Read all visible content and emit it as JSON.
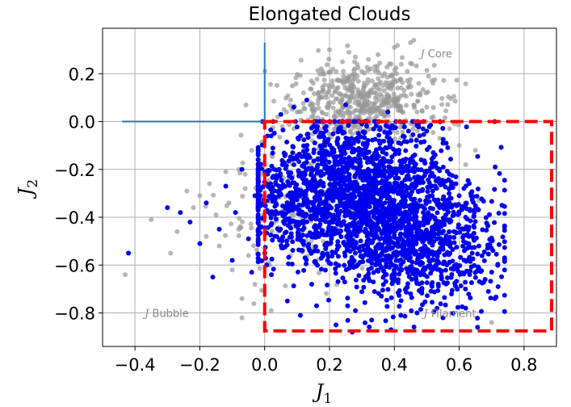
{
  "chart_data": {
    "type": "scatter",
    "title": "Elongated Clouds",
    "xlabel": {
      "symbol": "J",
      "sub": "1"
    },
    "ylabel": {
      "symbol": "J",
      "sub": "2"
    },
    "xlim": [
      -0.5,
      0.9
    ],
    "ylim": [
      -0.94,
      0.39
    ],
    "xticks": [
      -0.4,
      -0.2,
      0.0,
      0.2,
      0.4,
      0.6,
      0.8
    ],
    "xtick_labels": [
      "−0.4",
      "−0.2",
      "0.0",
      "0.2",
      "0.4",
      "0.6",
      "0.8"
    ],
    "yticks": [
      0.2,
      0.0,
      -0.2,
      -0.4,
      -0.6,
      -0.8
    ],
    "ytick_labels": [
      "0.2",
      "0.0",
      "−0.2",
      "−0.4",
      "−0.6",
      "−0.8"
    ],
    "grid": true,
    "colors": {
      "all_points": "#999999",
      "selected_points": "#0000ee",
      "box": "#ff0000",
      "axes_cross": "#1f77b4"
    },
    "cross_lines": {
      "horizontal": {
        "x": [
          -0.44,
          0.0
        ],
        "y": 0.0
      },
      "vertical": {
        "x": 0.0,
        "y": [
          0.0,
          0.33
        ]
      }
    },
    "selection_box": {
      "x": [
        0.0,
        0.885
      ],
      "y": [
        -0.875,
        0.0
      ],
      "style": "dashed"
    },
    "series": [
      {
        "role": "all",
        "color": "#999999",
        "points": [
          [
            -0.43,
            -0.64
          ],
          [
            -0.35,
            -0.41
          ],
          [
            -0.29,
            -0.55
          ],
          [
            -0.27,
            -0.46
          ],
          [
            -0.24,
            -0.29
          ],
          [
            -0.22,
            -0.36
          ],
          [
            -0.2,
            -0.31
          ],
          [
            -0.18,
            -0.48
          ],
          [
            -0.17,
            -0.26
          ],
          [
            -0.15,
            -0.39
          ],
          [
            -0.14,
            -0.52
          ],
          [
            -0.12,
            -0.21
          ],
          [
            -0.11,
            -0.34
          ],
          [
            -0.1,
            -0.62
          ],
          [
            -0.08,
            -0.45
          ],
          [
            -0.07,
            -0.74
          ],
          [
            -0.07,
            -0.82
          ],
          [
            -0.06,
            -0.28
          ],
          [
            -0.05,
            -0.56
          ],
          [
            -0.04,
            -0.12
          ],
          [
            -0.03,
            -0.68
          ],
          [
            -0.02,
            -0.4
          ],
          [
            -0.01,
            -0.22
          ],
          [
            0.02,
            -0.79
          ],
          [
            0.04,
            0.02
          ],
          [
            0.06,
            0.05
          ],
          [
            0.08,
            0.09
          ],
          [
            0.1,
            0.04
          ],
          [
            0.12,
            0.12
          ],
          [
            0.14,
            0.07
          ],
          [
            0.15,
            0.16
          ],
          [
            0.17,
            0.1
          ],
          [
            0.18,
            0.2
          ],
          [
            0.2,
            0.14
          ],
          [
            0.21,
            0.22
          ],
          [
            0.23,
            0.17
          ],
          [
            0.24,
            0.25
          ],
          [
            0.25,
            0.11
          ],
          [
            0.27,
            0.19
          ],
          [
            0.28,
            0.27
          ],
          [
            0.29,
            0.08
          ],
          [
            0.3,
            0.21
          ],
          [
            0.31,
            0.15
          ],
          [
            0.32,
            0.26
          ],
          [
            0.33,
            0.12
          ],
          [
            0.34,
            0.23
          ],
          [
            0.35,
            0.18
          ],
          [
            0.36,
            0.07
          ],
          [
            0.37,
            0.2
          ],
          [
            0.38,
            0.14
          ],
          [
            0.39,
            0.24
          ],
          [
            0.4,
            0.1
          ],
          [
            0.41,
            0.17
          ],
          [
            0.42,
            0.05
          ],
          [
            0.43,
            0.13
          ],
          [
            0.44,
            0.21
          ],
          [
            0.45,
            0.33
          ],
          [
            0.46,
            0.34
          ],
          [
            0.47,
            0.04
          ],
          [
            0.48,
            0.11
          ],
          [
            0.5,
            0.06
          ],
          [
            0.52,
            0.02
          ],
          [
            0.54,
            -0.07
          ],
          [
            0.57,
            -0.03
          ],
          [
            0.6,
            -0.1
          ],
          [
            0.62,
            -0.18
          ],
          [
            0.65,
            -0.12
          ],
          [
            0.66,
            -0.33
          ],
          [
            0.7,
            -0.84
          ],
          [
            0.2,
            0.3
          ],
          [
            0.26,
            0.29
          ],
          [
            0.35,
            0.28
          ],
          [
            0.4,
            0.31
          ],
          [
            0.15,
            0.02
          ],
          [
            0.09,
            -0.03
          ]
        ]
      },
      {
        "role": "selected",
        "color": "#0000ee",
        "points": [
          [
            -0.42,
            -0.55
          ],
          [
            -0.3,
            -0.36
          ],
          [
            -0.26,
            -0.38
          ],
          [
            -0.23,
            -0.42
          ],
          [
            -0.2,
            -0.51
          ],
          [
            -0.18,
            -0.34
          ],
          [
            -0.16,
            -0.65
          ],
          [
            -0.14,
            -0.45
          ],
          [
            -0.12,
            -0.27
          ],
          [
            -0.1,
            -0.58
          ],
          [
            -0.09,
            -0.38
          ],
          [
            -0.07,
            -0.2
          ],
          [
            -0.05,
            -0.49
          ],
          [
            -0.04,
            -0.63
          ],
          [
            -0.03,
            -0.31
          ],
          [
            -0.02,
            -0.14
          ],
          [
            -0.01,
            -0.44
          ],
          [
            0.02,
            -0.06
          ],
          [
            0.05,
            0.03
          ],
          [
            0.07,
            -0.75
          ],
          [
            0.09,
            0.06
          ],
          [
            0.11,
            -0.81
          ],
          [
            0.13,
            0.09
          ],
          [
            0.16,
            -0.77
          ],
          [
            0.19,
            -0.02
          ],
          [
            0.22,
            -0.85
          ],
          [
            0.25,
            0.07
          ],
          [
            0.28,
            -0.79
          ],
          [
            0.3,
            -0.01
          ],
          [
            0.33,
            -0.83
          ],
          [
            0.36,
            -0.73
          ],
          [
            0.38,
            0.04
          ],
          [
            0.42,
            -0.81
          ],
          [
            0.45,
            -0.72
          ],
          [
            0.47,
            -0.8
          ],
          [
            0.5,
            -0.04
          ],
          [
            0.52,
            -0.13
          ],
          [
            0.55,
            -0.09
          ],
          [
            0.57,
            -0.22
          ],
          [
            0.59,
            -0.26
          ],
          [
            0.6,
            -0.31
          ],
          [
            0.62,
            -0.4
          ],
          [
            0.63,
            -0.48
          ],
          [
            0.64,
            -0.55
          ],
          [
            0.66,
            -0.61
          ],
          [
            0.68,
            -0.66
          ],
          [
            0.69,
            -0.71
          ],
          [
            0.71,
            -0.74
          ],
          [
            0.72,
            -0.69
          ],
          [
            0.74,
            -0.62
          ],
          [
            0.55,
            -0.82
          ],
          [
            0.62,
            -0.78
          ],
          [
            0.39,
            -0.87
          ],
          [
            0.27,
            -0.88
          ],
          [
            0.58,
            -0.35
          ]
        ]
      }
    ],
    "dense_clouds": [
      {
        "role": "all",
        "center": [
          0.3,
          0.08
        ],
        "spread": [
          0.11,
          0.08
        ],
        "count": 520
      },
      {
        "role": "all",
        "center": [
          0.12,
          -0.4
        ],
        "spread": [
          0.13,
          0.12
        ],
        "count": 160
      },
      {
        "role": "selected",
        "center": [
          0.3,
          -0.3
        ],
        "spread": [
          0.13,
          0.16
        ],
        "count": 1500
      },
      {
        "role": "selected",
        "center": [
          0.48,
          -0.5
        ],
        "spread": [
          0.12,
          0.13
        ],
        "count": 800
      },
      {
        "role": "selected",
        "center": [
          0.05,
          -0.35
        ],
        "spread": [
          0.1,
          0.12
        ],
        "count": 300
      }
    ],
    "annotations": [
      {
        "x": 0.48,
        "y": 0.285,
        "symbol": "J",
        "text": " Core"
      },
      {
        "x": -0.37,
        "y": -0.8,
        "symbol": "J",
        "text": " Bubble"
      },
      {
        "x": 0.49,
        "y": -0.8,
        "symbol": "J",
        "text": " Filament"
      }
    ]
  }
}
